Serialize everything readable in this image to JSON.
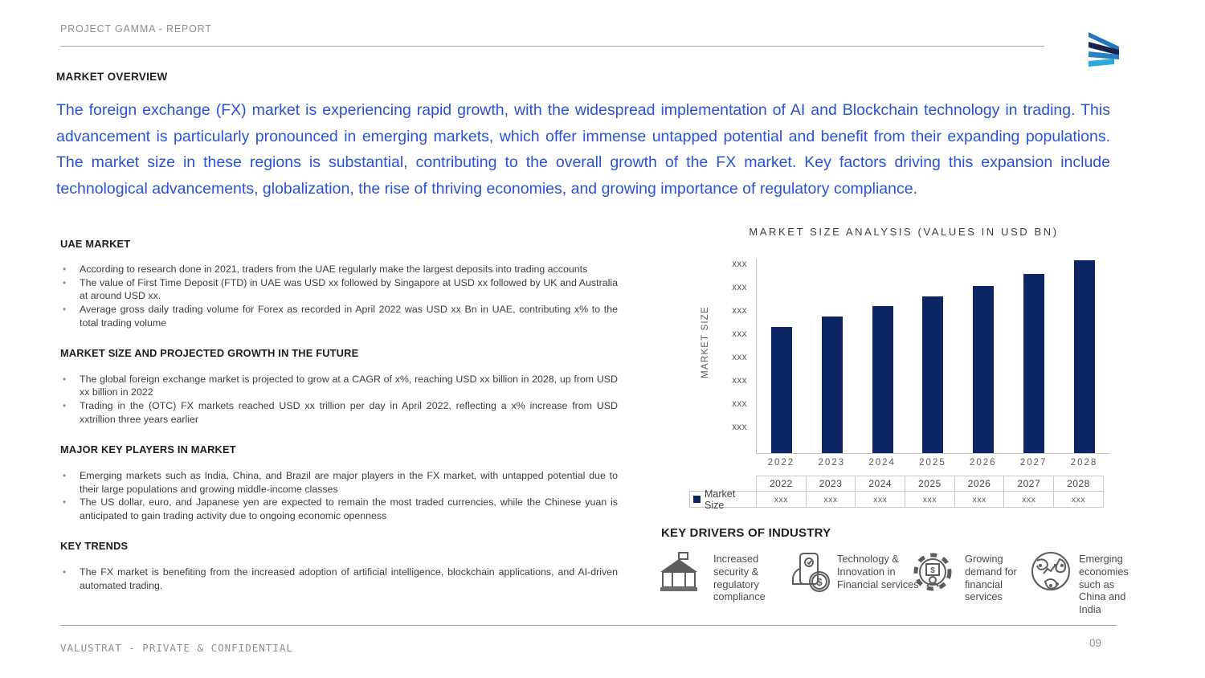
{
  "header": {
    "breadcrumb": "PROJECT GAMMA - REPORT"
  },
  "page": {
    "section_title": "MARKET OVERVIEW",
    "intro_paragraph": "The foreign exchange (FX) market is experiencing rapid growth, with the widespread implementation of AI and Blockchain technology in trading. This advancement is particularly pronounced in emerging markets, which offer immense untapped potential and benefit from their expanding populations. The market size in these regions is substantial, contributing to the overall growth of the FX market. Key factors driving this expansion include technological advancements, globalization, the rise of thriving economies, and growing importance of regulatory compliance."
  },
  "left_sections": [
    {
      "heading": "UAE MARKET",
      "bullets": [
        "According to research done in 2021, traders from the UAE regularly make the largest deposits into trading accounts",
        "The value of First Time Deposit (FTD) in UAE was USD xx followed by Singapore at USD xx followed by UK and Australia at around USD xx.",
        "Average gross daily trading volume for Forex as recorded in April 2022 was USD xx Bn in UAE, contributing x% to the total trading volume"
      ]
    },
    {
      "heading": "MARKET SIZE AND PROJECTED GROWTH IN THE FUTURE",
      "bullets": [
        "The global foreign exchange market is projected to grow at a CAGR of x%, reaching USD xx billion in 2028, up from USD xx billion in 2022",
        "Trading in the (OTC) FX markets reached USD xx trillion per day in April 2022, reflecting a x% increase from USD xxtrillion three years earlier"
      ]
    },
    {
      "heading": "MAJOR KEY PLAYERS IN MARKET",
      "bullets": [
        "Emerging markets such as India, China, and Brazil are major players in the FX market, with untapped potential due to their large populations and growing middle-income classes",
        "The US dollar, euro, and Japanese yen are expected to remain the most traded currencies, while the Chinese yuan is anticipated to gain trading activity due to ongoing economic openness"
      ]
    },
    {
      "heading": "KEY TRENDS",
      "bullets": [
        "The FX market is benefiting from the increased adoption of artificial intelligence, blockchain applications, and AI-driven automated trading."
      ]
    }
  ],
  "chart_data": {
    "type": "bar",
    "title": "MARKET SIZE ANALYSIS (VALUES IN USD BN)",
    "ylabel": "MARKET SIZE",
    "xlabel": "",
    "categories": [
      "2022",
      "2023",
      "2024",
      "2025",
      "2026",
      "2027",
      "2028"
    ],
    "series": [
      {
        "name": "Market Size",
        "values": [
          "xxx",
          "xxx",
          "xxx",
          "xxx",
          "xxx",
          "xxx",
          "xxx"
        ]
      }
    ],
    "y_tick_labels": [
      "xxx",
      "xxx",
      "xxx",
      "xxx",
      "xxx",
      "xxx",
      "xxx",
      "xxx"
    ],
    "bar_heights_rel": [
      0.655,
      0.707,
      0.761,
      0.811,
      0.866,
      0.929,
      1.0
    ],
    "bar_color": "#0e2564",
    "grid": "off",
    "legend_position": "bottom-table-left"
  },
  "table": {
    "row_label": "Market Size",
    "values": [
      "xxx",
      "xxx",
      "xxx",
      "xxx",
      "xxx",
      "xxx",
      "xxx"
    ]
  },
  "key_drivers": {
    "heading": "KEY DRIVERS OF INDUSTRY",
    "items": [
      {
        "icon": "bank-pavilion-icon",
        "label": "Increased security & regulatory compliance"
      },
      {
        "icon": "mobile-payment-icon",
        "label": "Technology & Innovation in Financial services"
      },
      {
        "icon": "gear-finance-icon",
        "label": "Growing demand for financial services"
      },
      {
        "icon": "global-economy-icon",
        "label": "Emerging economies such as China and India"
      }
    ]
  },
  "footer": {
    "left": "VALUSTRAT - PRIVATE & CONFIDENTIAL",
    "page_number": "09"
  },
  "colors": {
    "accent_blue_text": "#2b52d6",
    "bar_navy": "#0e2564",
    "bullet_blue": "#4fa0d8",
    "logo_blue": "#2176bd",
    "logo_navy": "#16264e",
    "logo_light_blue": "#2aa9e0"
  }
}
